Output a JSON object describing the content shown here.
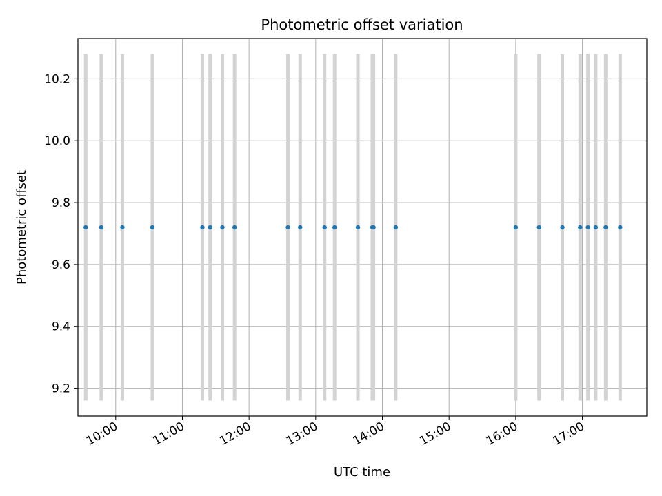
{
  "chart_data": {
    "type": "scatter",
    "title": "Photometric offset variation",
    "xlabel": "UTC time",
    "ylabel": "Photometric offset",
    "xlim": [
      "09:26",
      "17:58"
    ],
    "ylim": [
      9.11,
      10.33
    ],
    "x_ticks": [
      "10:00",
      "11:00",
      "12:00",
      "13:00",
      "14:00",
      "15:00",
      "16:00",
      "17:00"
    ],
    "y_ticks": [
      9.2,
      9.4,
      9.6,
      9.8,
      10.0,
      10.2
    ],
    "grid": true,
    "colors": {
      "points": "#1f77b4",
      "error_bars": "#d3d3d3"
    },
    "points": {
      "x": [
        "09:33",
        "09:47",
        "10:06",
        "10:33",
        "11:18",
        "11:25",
        "11:36",
        "11:47",
        "12:35",
        "12:46",
        "13:08",
        "13:17",
        "13:38",
        "13:51",
        "13:52",
        "14:12",
        "16:00",
        "16:21",
        "16:42",
        "16:58",
        "17:05",
        "17:12",
        "17:21",
        "17:34"
      ],
      "y": [
        9.72,
        9.72,
        9.72,
        9.72,
        9.72,
        9.72,
        9.72,
        9.72,
        9.72,
        9.72,
        9.72,
        9.72,
        9.72,
        9.72,
        9.72,
        9.72,
        9.72,
        9.72,
        9.72,
        9.72,
        9.72,
        9.72,
        9.72,
        9.72
      ],
      "y_lower": [
        9.16,
        9.16,
        9.16,
        9.16,
        9.16,
        9.16,
        9.16,
        9.16,
        9.16,
        9.16,
        9.16,
        9.16,
        9.16,
        9.16,
        9.16,
        9.16,
        9.16,
        9.16,
        9.16,
        9.16,
        9.16,
        9.16,
        9.16,
        9.16
      ],
      "y_upper": [
        10.28,
        10.28,
        10.28,
        10.28,
        10.28,
        10.28,
        10.28,
        10.28,
        10.28,
        10.28,
        10.28,
        10.28,
        10.28,
        10.28,
        10.28,
        10.28,
        10.28,
        10.28,
        10.28,
        10.28,
        10.28,
        10.28,
        10.28,
        10.28
      ]
    }
  }
}
